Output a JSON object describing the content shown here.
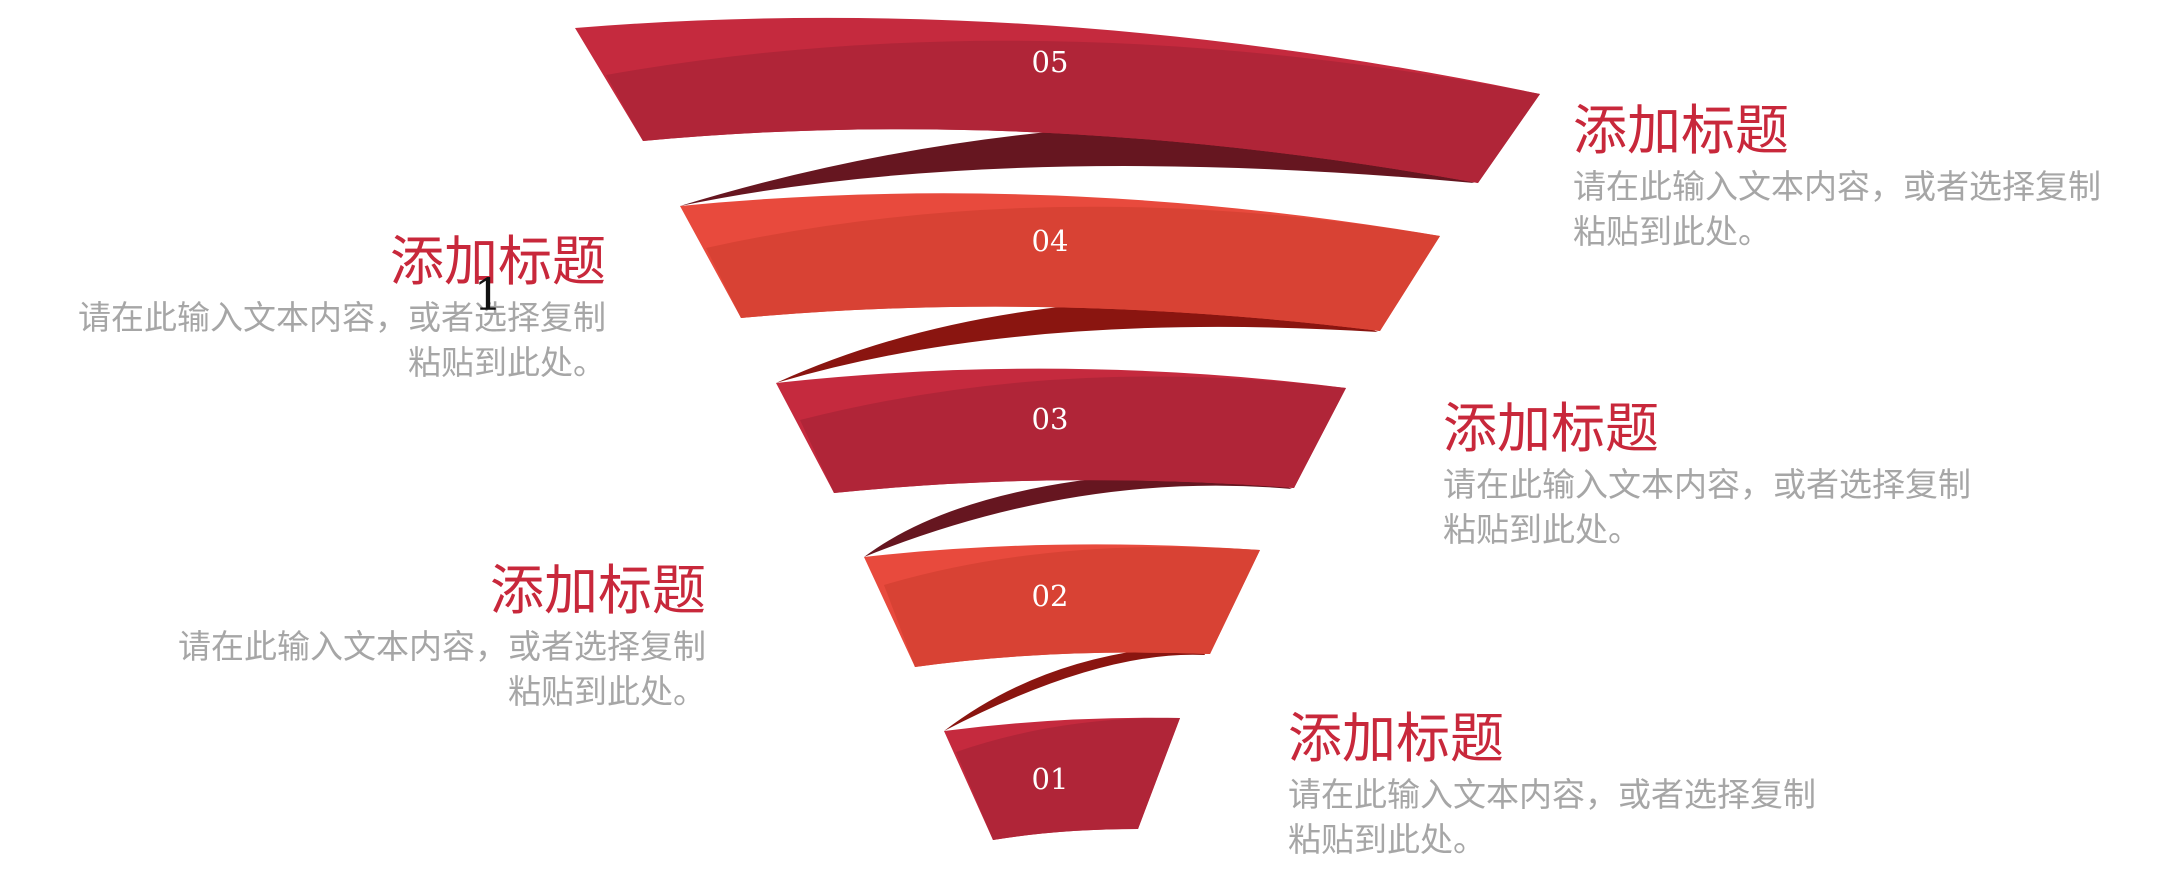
{
  "funnel": {
    "bands": [
      {
        "number": "05",
        "color": "#c52a3e"
      },
      {
        "number": "04",
        "color": "#d84234"
      },
      {
        "number": "03",
        "color": "#c52a3e"
      },
      {
        "number": "02",
        "color": "#d84234"
      },
      {
        "number": "01",
        "color": "#c52a3e"
      }
    ],
    "connector_colors": [
      "#661620",
      "#8a1510",
      "#661620",
      "#8a1510"
    ]
  },
  "items": [
    {
      "title": "添加标题",
      "line1": "请在此输入文本内容，或者选择复制",
      "line2": "粘贴到此处。"
    },
    {
      "title": "添加标题",
      "line1": "请在此输入文本内容，或者选择复制",
      "line2": "粘贴到此处。"
    },
    {
      "title": "添加标题",
      "line1": "请在此输入文本内容，或者选择复制",
      "line2": "粘贴到此处。"
    },
    {
      "title": "添加标题",
      "line1": "请在此输入文本内容，或者选择复制",
      "line2": "粘贴到此处。"
    },
    {
      "title": "添加标题",
      "line1": "请在此输入文本内容，或者选择复制",
      "line2": "粘贴到此处。"
    }
  ],
  "stray_mark": "1",
  "colors": {
    "title": "#c8283b",
    "body": "#a6a6a6"
  }
}
